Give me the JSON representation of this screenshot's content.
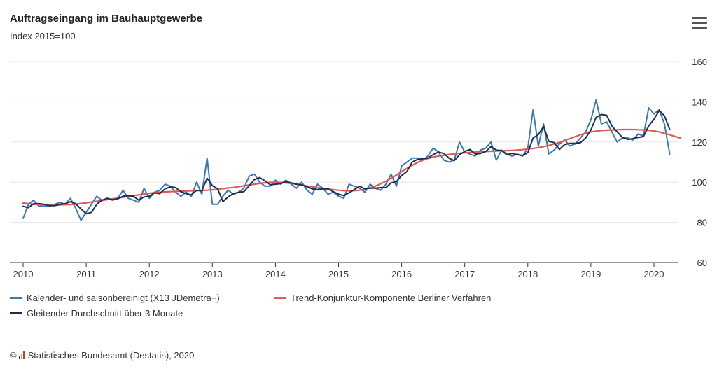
{
  "header": {
    "title": "Auftragseingang im Bauhauptgewerbe",
    "subtitle": "Index 2015=100",
    "menu_icon": "hamburger-menu-icon"
  },
  "source": {
    "copyright": "©",
    "text": "Statistisches Bundesamt (Destatis), 2020",
    "logo_icon": "destatis-bars-icon"
  },
  "chart_data": {
    "type": "line",
    "title": "Auftragseingang im Bauhauptgewerbe",
    "subtitle": "Index 2015=100",
    "x_start": "2010-01",
    "x_frequency": "monthly",
    "x_tick_labels": [
      "2010",
      "2011",
      "2012",
      "2013",
      "2014",
      "2015",
      "2016",
      "2017",
      "2018",
      "2019",
      "2020"
    ],
    "ylim": [
      60,
      165
    ],
    "y_ticks": [
      60,
      80,
      100,
      120,
      140,
      160
    ],
    "y_axis_side": "right",
    "grid": "horizontal",
    "legend_position": "bottom-left",
    "series": [
      {
        "name": "Kalender- und saisonbereinigt (X13 JDemetra+)",
        "color": "#3c78b4",
        "values": [
          82,
          89,
          91,
          88,
          88,
          88,
          89,
          90,
          89,
          92,
          87,
          81,
          85,
          89,
          93,
          91,
          92,
          91,
          92,
          96,
          92,
          91,
          90,
          97,
          92,
          95,
          96,
          99,
          98,
          95,
          93,
          95,
          93,
          100,
          94,
          112,
          89,
          89,
          93,
          96,
          94,
          95,
          97,
          103,
          104,
          100,
          98,
          98,
          101,
          99,
          101,
          99,
          97,
          100,
          96,
          94,
          99,
          97,
          94,
          95,
          93,
          92,
          99,
          98,
          97,
          95,
          99,
          97,
          96,
          99,
          104,
          98,
          108,
          110,
          112,
          112,
          111,
          113,
          117,
          115,
          111,
          110,
          111,
          120,
          115,
          114,
          113,
          116,
          117,
          120,
          111,
          116,
          114,
          113,
          114,
          113,
          117,
          136,
          118,
          129,
          114,
          116,
          119,
          121,
          118,
          119,
          122,
          125,
          131,
          141,
          129,
          130,
          125,
          120,
          122,
          122,
          121,
          124,
          123,
          137,
          134,
          136,
          129,
          114
        ]
      },
      {
        "name": "Trend-Konjunktur-Komponente Berliner Verfahren",
        "color": "#e05a5a",
        "values": [
          89.6,
          89.3,
          89.0,
          88.8,
          88.7,
          88.6,
          88.6,
          88.7,
          88.8,
          88.9,
          89.1,
          89.4,
          89.7,
          90.1,
          90.5,
          90.9,
          91.3,
          91.7,
          92.1,
          92.5,
          92.9,
          93.3,
          93.7,
          94.1,
          94.5,
          94.8,
          95.0,
          95.2,
          95.3,
          95.4,
          95.5,
          95.6,
          95.7,
          95.8,
          95.9,
          96.0,
          96.2,
          96.5,
          96.8,
          97.1,
          97.4,
          97.8,
          98.2,
          98.6,
          99.0,
          99.4,
          99.7,
          99.9,
          100.0,
          99.9,
          99.7,
          99.4,
          99.0,
          98.6,
          98.1,
          97.7,
          97.3,
          96.9,
          96.6,
          96.3,
          96.0,
          95.8,
          95.7,
          95.8,
          96.0,
          96.5,
          97.2,
          98.1,
          99.2,
          100.5,
          102.0,
          103.6,
          105.3,
          106.9,
          108.4,
          109.8,
          110.9,
          111.8,
          112.5,
          113.0,
          113.4,
          113.8,
          114.1,
          114.4,
          114.6,
          114.8,
          115.0,
          115.2,
          115.3,
          115.4,
          115.5,
          115.6,
          115.7,
          115.8,
          116.0,
          116.2,
          116.5,
          116.8,
          117.2,
          117.7,
          118.3,
          119.0,
          119.8,
          120.7,
          121.7,
          122.7,
          123.6,
          124.4,
          125.0,
          125.4,
          125.7,
          125.9,
          126.0,
          126.1,
          126.2,
          126.2,
          126.2,
          126.1,
          126.0,
          125.8,
          125.5,
          125.0,
          124.3,
          123.6,
          122.8,
          122.0
        ]
      },
      {
        "name": "Gleitender Durchschnitt über 3 Monate",
        "color": "#1f2f4b",
        "values": [
          88.0,
          87.3,
          89.3,
          89.3,
          89.0,
          88.3,
          88.3,
          89.0,
          89.3,
          90.3,
          89.3,
          86.7,
          84.3,
          85.0,
          89.0,
          91.0,
          92.0,
          91.3,
          91.7,
          93.0,
          93.3,
          93.0,
          91.0,
          92.7,
          93.0,
          94.7,
          94.3,
          96.7,
          97.7,
          97.3,
          95.3,
          94.3,
          93.7,
          96.0,
          95.7,
          102.0,
          98.3,
          96.7,
          90.3,
          92.7,
          94.3,
          95.0,
          95.3,
          98.3,
          101.3,
          102.3,
          100.7,
          98.7,
          99.0,
          99.3,
          100.3,
          99.7,
          99.0,
          98.7,
          97.7,
          96.7,
          96.3,
          96.7,
          96.7,
          95.3,
          94.0,
          93.3,
          94.7,
          96.3,
          98.0,
          96.7,
          97.0,
          97.0,
          97.3,
          97.3,
          99.7,
          100.3,
          103.3,
          105.3,
          110.0,
          111.3,
          111.7,
          112.0,
          113.7,
          115.0,
          114.3,
          112.0,
          110.7,
          113.7,
          115.3,
          116.3,
          114.0,
          114.3,
          115.3,
          117.7,
          116.0,
          115.7,
          113.7,
          114.3,
          113.7,
          113.3,
          114.7,
          122.0,
          123.7,
          127.7,
          120.3,
          119.7,
          116.3,
          118.7,
          119.3,
          119.3,
          119.7,
          122.0,
          126.0,
          132.3,
          133.7,
          133.3,
          128.0,
          125.0,
          122.3,
          121.3,
          121.7,
          122.3,
          122.7,
          128.0,
          131.3,
          135.7,
          133.0,
          126.3
        ]
      }
    ]
  }
}
